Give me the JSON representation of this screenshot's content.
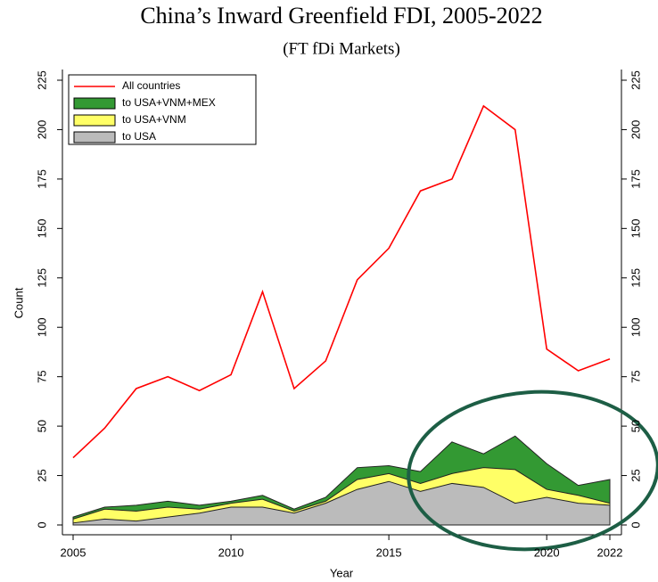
{
  "chart_data": {
    "type": "area",
    "title": "China’s Inward Greenfield FDI, 2005-2022",
    "subtitle": "(FT fDi Markets)",
    "x_label": "Year",
    "y_label": "Count",
    "x": [
      2005,
      2006,
      2007,
      2008,
      2009,
      2010,
      2011,
      2012,
      2013,
      2014,
      2015,
      2016,
      2017,
      2018,
      2019,
      2020,
      2021,
      2022
    ],
    "series": [
      {
        "name": "All countries",
        "type": "line",
        "color": "#ff0000",
        "values": [
          34,
          49,
          69,
          75,
          68,
          76,
          118,
          69,
          83,
          124,
          140,
          169,
          175,
          212,
          200,
          89,
          78,
          84
        ]
      },
      {
        "name": "to USA+VNM+MEX",
        "type": "area",
        "color": "#339933",
        "values": [
          4,
          9,
          10,
          12,
          10,
          12,
          15,
          8,
          14,
          29,
          30,
          27,
          42,
          36,
          45,
          31,
          20,
          23
        ]
      },
      {
        "name": "to USA+VNM",
        "type": "area",
        "color": "#ffff66",
        "values": [
          3,
          8,
          7,
          9,
          8,
          11,
          13,
          7,
          12,
          23,
          26,
          21,
          26,
          29,
          28,
          18,
          15,
          11
        ]
      },
      {
        "name": "to USA",
        "type": "area",
        "color": "#bbbbbb",
        "values": [
          1,
          3,
          2,
          4,
          6,
          9,
          9,
          6,
          11,
          18,
          22,
          17,
          21,
          19,
          11,
          14,
          11,
          10
        ]
      }
    ],
    "xlim": [
      2005,
      2022
    ],
    "xticks": [
      2005,
      2010,
      2015,
      2020,
      2022
    ],
    "ylim": [
      0,
      225
    ],
    "yticks": [
      0,
      25,
      50,
      75,
      100,
      125,
      150,
      175,
      200,
      225
    ],
    "y2lim": [
      0,
      225
    ],
    "y2ticks": [
      0,
      25,
      50,
      75,
      100,
      125,
      150,
      175,
      200,
      225
    ],
    "legend": "top-left"
  }
}
